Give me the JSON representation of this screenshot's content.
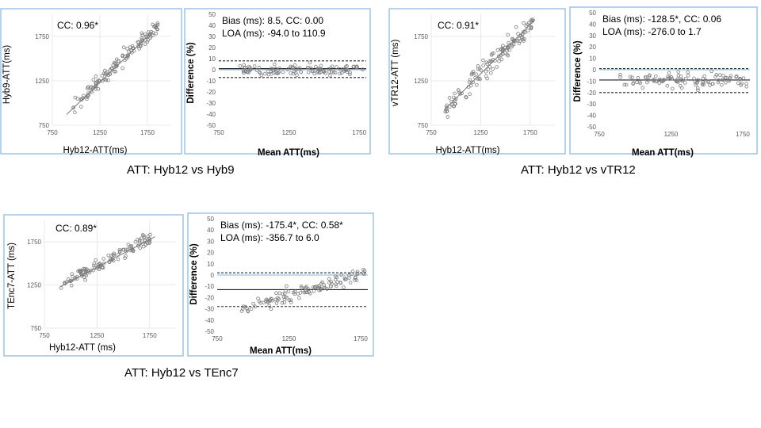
{
  "chart_data": [
    {
      "type": "scatter",
      "id": "p1",
      "annotation": "CC: 0.96*",
      "xlabel": "Hyb12-ATT(ms)",
      "ylabel": "Hyb9-ATT(ms)",
      "xlim": [
        750,
        2000
      ],
      "ylim": [
        750,
        2000
      ],
      "xticks": [
        "750",
        "1250",
        "1750"
      ],
      "yticks": [
        "750",
        "1250",
        "1750"
      ],
      "xtick_values": [
        750,
        1250,
        1750
      ],
      "ytick_values": [
        750,
        1250,
        1750
      ],
      "grid": true,
      "fit_line": {
        "x": [
          900,
          1800
        ],
        "y": [
          870,
          1800
        ]
      },
      "points_spec": {
        "n": 130,
        "xmin": 900,
        "xmax": 1860,
        "slope": 1.0,
        "intercept": 0,
        "noise": 60,
        "seed": 11
      }
    },
    {
      "type": "scatter",
      "id": "p2",
      "annotation_lines": [
        "Bias (ms): 8.5, CC: 0.00",
        "LOA (ms): -94.0 to 110.9"
      ],
      "xlabel": "Mean ATT(ms)",
      "ylabel": "Difference (%)",
      "xlim": [
        750,
        1800
      ],
      "ylim": [
        -50,
        50
      ],
      "xticks": [
        "750",
        "1250",
        "1750"
      ],
      "yticks": [
        "50",
        "40",
        "30",
        "20",
        "10",
        "0",
        "-10",
        "-20",
        "-30",
        "-40",
        "-50"
      ],
      "xtick_values": [
        750,
        1250,
        1750
      ],
      "ytick_values": [
        50,
        40,
        30,
        20,
        10,
        0,
        -10,
        -20,
        -30,
        -40,
        -50
      ],
      "grid": false,
      "mean_line": 1,
      "loa_lines": [
        8,
        -7
      ],
      "points_spec": {
        "n": 110,
        "xmin": 880,
        "xmax": 1780,
        "slope": 0,
        "intercept": 0,
        "noise": 3.8,
        "seed": 23
      }
    },
    {
      "type": "scatter",
      "id": "p3",
      "annotation": "CC: 0.91*",
      "xlabel": "Hyb12-ATT(ms)",
      "ylabel": "vTR12-ATT (ms)",
      "xlim": [
        750,
        2000
      ],
      "ylim": [
        750,
        2000
      ],
      "xticks": [
        "750",
        "1250",
        "1750"
      ],
      "yticks": [
        "750",
        "1250",
        "1750"
      ],
      "xtick_values": [
        750,
        1250,
        1750
      ],
      "ytick_values": [
        750,
        1250,
        1750
      ],
      "grid": true,
      "fit_line": {
        "x": [
          880,
          1800
        ],
        "y": [
          920,
          1940
        ]
      },
      "points_spec": {
        "n": 130,
        "xmin": 880,
        "xmax": 1780,
        "slope": 1.08,
        "intercept": -20,
        "noise": 80,
        "seed": 37
      }
    },
    {
      "type": "scatter",
      "id": "p4",
      "annotation_lines": [
        "Bias (ms): -128.5*, CC: 0.06",
        "LOA (ms): -276.0 to 1.7"
      ],
      "xlabel": "Mean ATT(ms)",
      "ylabel": "Difference (%)",
      "xlim": [
        750,
        1800
      ],
      "ylim": [
        -50,
        50
      ],
      "xticks": [
        "750",
        "1250",
        "1750"
      ],
      "yticks": [
        "50",
        "40",
        "30",
        "20",
        "10",
        "0",
        "-10",
        "-20",
        "-30",
        "-40",
        "-50"
      ],
      "xtick_values": [
        750,
        1250,
        1750
      ],
      "ytick_values": [
        50,
        40,
        30,
        20,
        10,
        0,
        -10,
        -20,
        -30,
        -40,
        -50
      ],
      "grid": false,
      "mean_line": -9,
      "loa_lines": [
        1,
        -20
      ],
      "points_spec": {
        "n": 110,
        "xmin": 880,
        "xmax": 1780,
        "slope": 0,
        "intercept": -9,
        "noise": 5,
        "seed": 51
      }
    },
    {
      "type": "scatter",
      "id": "p5",
      "annotation": "CC: 0.89*",
      "xlabel": "Hyb12-ATT (ms)",
      "ylabel": "TEnc7-ATT (ms)",
      "xlim": [
        750,
        2000
      ],
      "ylim": [
        750,
        2000
      ],
      "xticks": [
        "750",
        "1250",
        "1750"
      ],
      "yticks": [
        "750",
        "1250",
        "1750"
      ],
      "xtick_values": [
        750,
        1250,
        1750
      ],
      "ytick_values": [
        750,
        1250,
        1750
      ],
      "grid": true,
      "fit_line": {
        "x": [
          900,
          1800
        ],
        "y": [
          1230,
          1810
        ]
      },
      "points_spec": {
        "n": 120,
        "xmin": 900,
        "xmax": 1760,
        "slope": 0.66,
        "intercept": 640,
        "noise": 55,
        "seed": 73
      }
    },
    {
      "type": "scatter",
      "id": "p6",
      "annotation_lines": [
        "Bias (ms): -175.4*, CC: 0.58*",
        "LOA (ms): -356.7 to 6.0"
      ],
      "xlabel": "Mean ATT(ms)",
      "ylabel": "Difference (%)",
      "xlim": [
        750,
        1800
      ],
      "ylim": [
        -50,
        50
      ],
      "xticks": [
        "750",
        "1250",
        "1750"
      ],
      "yticks": [
        "50",
        "40",
        "30",
        "20",
        "10",
        "0",
        "-10",
        "-20",
        "-30",
        "-40",
        "-50"
      ],
      "xtick_values": [
        750,
        1250,
        1750
      ],
      "ytick_values": [
        50,
        40,
        30,
        20,
        10,
        0,
        -10,
        -20,
        -30,
        -40,
        -50
      ],
      "grid": false,
      "mean_line": -13,
      "loa_lines": [
        2,
        -28
      ],
      "points_spec": {
        "n": 120,
        "xmin": 920,
        "xmax": 1780,
        "slope": 0.036,
        "intercept": -63,
        "noise": 4.5,
        "seed": 89
      }
    }
  ],
  "captions": {
    "c1": "ATT: Hyb12 vs Hyb9",
    "c2": "ATT: Hyb12 vs vTR12",
    "c3": "ATT: Hyb12 vs TEnc7"
  }
}
